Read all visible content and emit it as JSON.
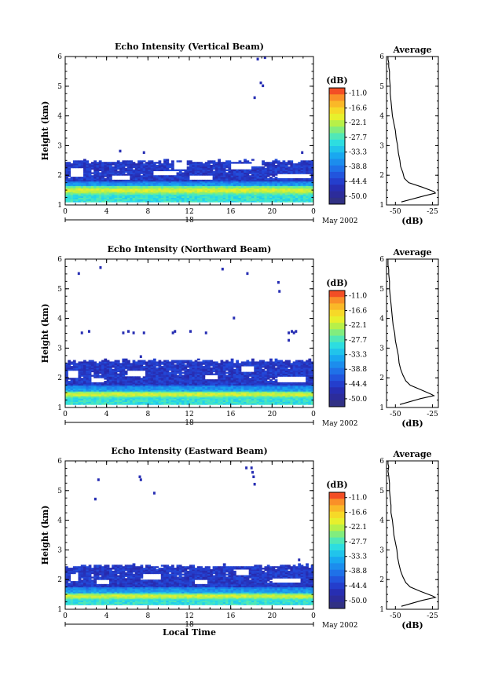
{
  "chart_data": [
    {
      "type": "heatmap",
      "title": "Echo Intensity (Vertical Beam)",
      "ylabel": "Height (km)",
      "xlabel": "",
      "x_ticks": [
        "0",
        "4",
        "8",
        "12",
        "16",
        "20",
        "0"
      ],
      "xlim": [
        0,
        24
      ],
      "y_ticks": [
        "1",
        "2",
        "3",
        "4",
        "5",
        "6"
      ],
      "ylim": [
        1,
        6
      ],
      "date_day": "18",
      "date_month": "May 2002",
      "layer": {
        "base_km": 1.1,
        "core_km": 1.45,
        "top_km": 2.45,
        "bright_start_km": 1.3,
        "bright_end_km": 1.65
      },
      "sparse_echoes": [
        [
          18.8,
          5.1
        ],
        [
          19.0,
          5.0
        ],
        [
          18.2,
          4.6
        ],
        [
          18.5,
          5.9
        ],
        [
          19.2,
          5.95
        ],
        [
          5.2,
          2.8
        ],
        [
          7.5,
          2.75
        ],
        [
          22.8,
          2.75
        ]
      ],
      "gaps": [
        [
          0.3,
          1.95,
          1.2,
          2.2
        ],
        [
          4.5,
          1.85,
          1.5,
          2.0
        ],
        [
          8.5,
          2.0,
          2.0,
          2.15
        ],
        [
          12.0,
          1.85,
          2.0,
          2.0
        ],
        [
          16.0,
          2.2,
          1.8,
          2.35
        ],
        [
          20.5,
          1.9,
          3.0,
          2.05
        ],
        [
          10.5,
          2.2,
          1.0,
          2.4
        ],
        [
          18.0,
          2.3,
          0.8,
          2.45
        ]
      ],
      "colorbar": {
        "unit": "(dB)",
        "labels": [
          "-11.0",
          "-16.6",
          "-22.1",
          "-27.7",
          "-33.3",
          "-38.8",
          "-44.4",
          "-50.0"
        ],
        "min": -53,
        "max": -9
      },
      "average_profile": {
        "title": "Average",
        "xlabel": "(dB)",
        "x_ticks": [
          "-50",
          "-25"
        ],
        "xlim": [
          -56,
          -21
        ],
        "ylim": [
          1,
          6
        ],
        "y_ticks": [
          "1",
          "2",
          "3",
          "4",
          "5",
          "6"
        ],
        "x": [
          -46,
          -31,
          -23,
          -24,
          -32,
          -41,
          -44,
          -45,
          -46.5,
          -47,
          -48,
          -48.5,
          -49.5,
          -50,
          -51,
          -52,
          -52.5,
          -53,
          -53.5,
          -53.5,
          -54,
          -54,
          -54.5,
          -54.5,
          -55,
          -55
        ],
        "y": [
          1.1,
          1.3,
          1.4,
          1.45,
          1.6,
          1.75,
          1.9,
          2.1,
          2.3,
          2.5,
          2.75,
          3.0,
          3.25,
          3.5,
          3.75,
          4.0,
          4.25,
          4.5,
          4.75,
          5.0,
          5.25,
          5.5,
          5.65,
          5.8,
          5.9,
          6.0
        ]
      }
    },
    {
      "type": "heatmap",
      "title": "Echo Intensity (Northward Beam)",
      "ylabel": "Height (km)",
      "xlabel": "",
      "x_ticks": [
        "0",
        "4",
        "8",
        "12",
        "16",
        "20",
        "0"
      ],
      "xlim": [
        0,
        24
      ],
      "y_ticks": [
        "1",
        "2",
        "3",
        "4",
        "5",
        "6"
      ],
      "ylim": [
        1,
        6
      ],
      "date_day": "18",
      "date_month": "May 2002",
      "layer": {
        "base_km": 1.1,
        "core_km": 1.4,
        "top_km": 2.55,
        "bright_start_km": 1.3,
        "bright_end_km": 1.55
      },
      "sparse_echoes": [
        [
          1.2,
          5.5
        ],
        [
          3.3,
          5.7
        ],
        [
          15.1,
          5.65
        ],
        [
          17.5,
          5.5
        ],
        [
          20.5,
          5.2
        ],
        [
          20.6,
          4.9
        ],
        [
          16.2,
          4.0
        ],
        [
          2.2,
          3.55
        ],
        [
          5.5,
          3.5
        ],
        [
          6.0,
          3.55
        ],
        [
          6.5,
          3.5
        ],
        [
          7.5,
          3.5
        ],
        [
          10.5,
          3.55
        ],
        [
          10.3,
          3.5
        ],
        [
          12.0,
          3.55
        ],
        [
          13.5,
          3.5
        ],
        [
          21.5,
          3.5
        ],
        [
          21.8,
          3.55
        ],
        [
          22.0,
          3.5
        ],
        [
          22.2,
          3.55
        ],
        [
          21.5,
          3.25
        ],
        [
          7.2,
          2.7
        ],
        [
          1.5,
          3.5
        ]
      ],
      "gaps": [
        [
          0.2,
          2.0,
          0.8,
          2.2
        ],
        [
          2.5,
          1.85,
          1.0,
          2.0
        ],
        [
          6.0,
          2.05,
          1.5,
          2.2
        ],
        [
          13.5,
          1.95,
          1.2,
          2.1
        ],
        [
          20.5,
          1.85,
          2.5,
          2.05
        ],
        [
          17.0,
          2.2,
          1.0,
          2.35
        ]
      ],
      "colorbar": {
        "unit": "(dB)",
        "labels": [
          "-11.0",
          "-16.6",
          "-22.1",
          "-27.7",
          "-33.3",
          "-38.8",
          "-44.4",
          "-50.0"
        ],
        "min": -53,
        "max": -9
      },
      "average_profile": {
        "title": "Average",
        "xlabel": "(dB)",
        "x_ticks": [
          "-50",
          "-25"
        ],
        "xlim": [
          -56,
          -21
        ],
        "ylim": [
          1,
          6
        ],
        "y_ticks": [
          "1",
          "2",
          "3",
          "4",
          "5",
          "6"
        ],
        "x": [
          -47,
          -33,
          -24,
          -26,
          -33,
          -40,
          -43,
          -45,
          -46.5,
          -47.5,
          -48,
          -49,
          -50,
          -50.5,
          -51.5,
          -52,
          -52.5,
          -53,
          -53.5,
          -54,
          -54,
          -54.5,
          -54.5,
          -55,
          -55,
          -55
        ],
        "y": [
          1.1,
          1.3,
          1.4,
          1.45,
          1.6,
          1.75,
          1.9,
          2.1,
          2.3,
          2.5,
          2.75,
          3.0,
          3.25,
          3.5,
          3.75,
          4.0,
          4.25,
          4.5,
          4.75,
          5.0,
          5.25,
          5.5,
          5.65,
          5.8,
          5.9,
          6.0
        ]
      }
    },
    {
      "type": "heatmap",
      "title": "Echo Intensity (Eastward Beam)",
      "ylabel": "Height (km)",
      "xlabel": "Local Time",
      "x_ticks": [
        "0",
        "4",
        "8",
        "12",
        "16",
        "20",
        "0"
      ],
      "xlim": [
        0,
        24
      ],
      "y_ticks": [
        "1",
        "2",
        "3",
        "4",
        "5",
        "6"
      ],
      "ylim": [
        1,
        6
      ],
      "date_day": "18",
      "date_month": "May 2002",
      "layer": {
        "base_km": 1.15,
        "core_km": 1.4,
        "top_km": 2.45,
        "bright_start_km": 1.3,
        "bright_end_km": 1.55
      },
      "sparse_echoes": [
        [
          3.1,
          5.35
        ],
        [
          2.8,
          4.7
        ],
        [
          7.1,
          5.45
        ],
        [
          7.2,
          5.35
        ],
        [
          8.5,
          4.9
        ],
        [
          17.9,
          5.75
        ],
        [
          18.0,
          5.6
        ],
        [
          18.1,
          5.45
        ],
        [
          17.4,
          5.75
        ],
        [
          18.2,
          5.2
        ],
        [
          22.5,
          2.65
        ]
      ],
      "gaps": [
        [
          0.3,
          1.95,
          0.9,
          2.15
        ],
        [
          2.8,
          1.85,
          1.2,
          2.0
        ],
        [
          7.5,
          2.0,
          1.5,
          2.15
        ],
        [
          12.5,
          1.85,
          1.2,
          2.0
        ],
        [
          20.0,
          1.9,
          2.5,
          2.05
        ],
        [
          16.5,
          2.15,
          1.0,
          2.3
        ]
      ],
      "colorbar": {
        "unit": "(dB)",
        "labels": [
          "-11.0",
          "-16.6",
          "-22.1",
          "-27.7",
          "-33.3",
          "-38.8",
          "-44.4",
          "-50.0"
        ],
        "min": -53,
        "max": -9
      },
      "average_profile": {
        "title": "Average",
        "xlabel": "(dB)",
        "x_ticks": [
          "-50",
          "-25"
        ],
        "xlim": [
          -56,
          -21
        ],
        "ylim": [
          1,
          6
        ],
        "y_ticks": [
          "1",
          "2",
          "3",
          "4",
          "5",
          "6"
        ],
        "x": [
          -46,
          -32,
          -23,
          -25,
          -33,
          -40,
          -43,
          -45,
          -46.5,
          -47.5,
          -48.5,
          -49,
          -50,
          -51,
          -51.5,
          -52,
          -53,
          -53,
          -53.5,
          -54,
          -54,
          -54.5,
          -55,
          -54.5,
          -55,
          -55
        ],
        "y": [
          1.1,
          1.3,
          1.4,
          1.45,
          1.6,
          1.75,
          1.9,
          2.1,
          2.3,
          2.5,
          2.75,
          3.0,
          3.25,
          3.5,
          3.75,
          4.0,
          4.25,
          4.5,
          4.75,
          5.0,
          5.25,
          5.5,
          5.65,
          5.8,
          5.9,
          6.0
        ]
      }
    }
  ]
}
